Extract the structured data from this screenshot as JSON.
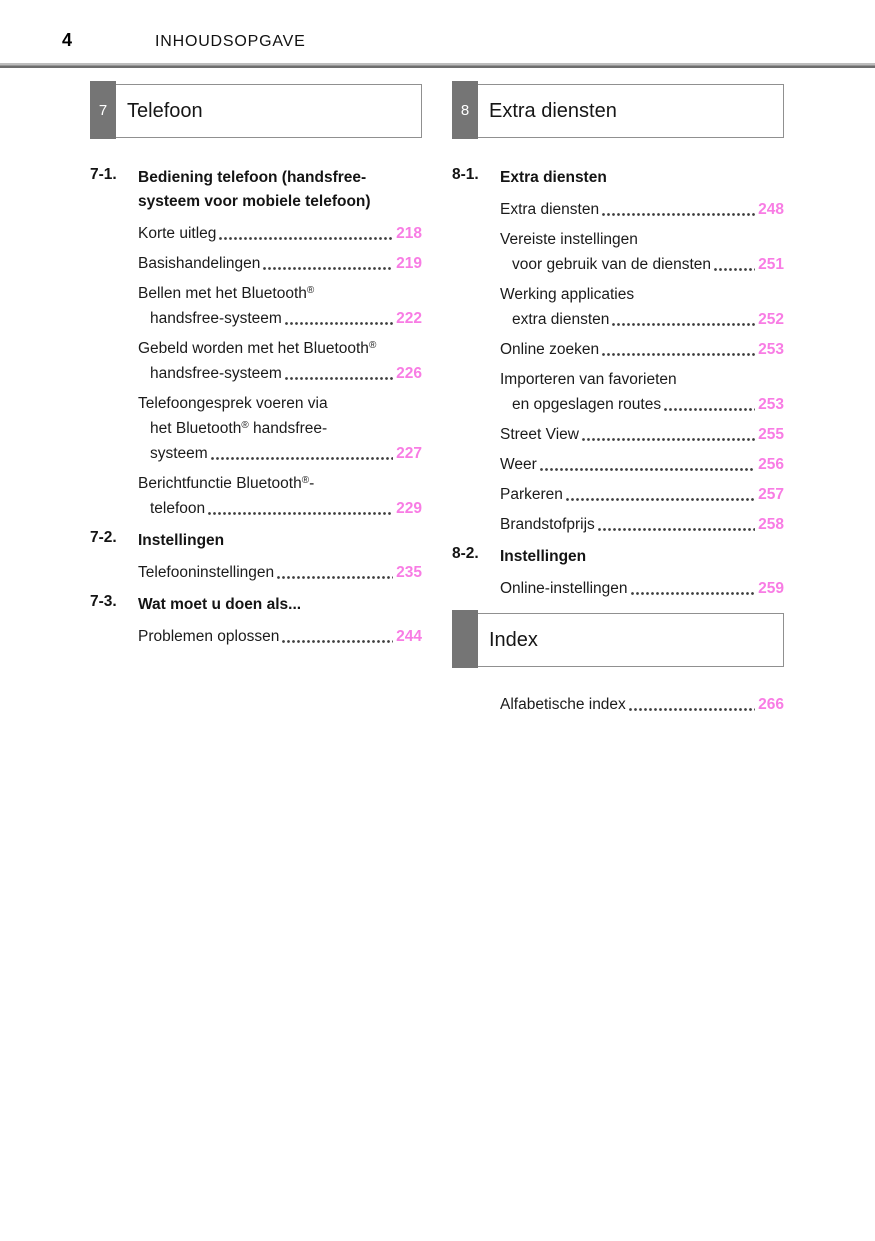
{
  "header": {
    "page_number": "4",
    "title": "INHOUDSOPGAVE"
  },
  "colors": {
    "accent_pink": "#f87ce4",
    "tab_gray": "#757575",
    "rule_gray": "#6d6d6d"
  },
  "columns": [
    {
      "side": "left",
      "blocks": [
        {
          "type": "section",
          "number": "7",
          "title": "Telefoon"
        },
        {
          "type": "group",
          "id": "7-1.",
          "title_lines": [
            "Bediening telefoon (handsfree-",
            "systeem voor mobiele telefoon)"
          ],
          "entries": [
            {
              "lines": [
                "Korte uitleg"
              ],
              "page": "218"
            },
            {
              "lines": [
                "Basishandelingen"
              ],
              "page": "219"
            },
            {
              "lines": [
                "Bellen met het Bluetooth®",
                "handsfree-systeem"
              ],
              "page": "222"
            },
            {
              "lines": [
                "Gebeld worden met het Bluetooth®",
                "handsfree-systeem"
              ],
              "page": "226"
            },
            {
              "lines": [
                "Telefoongesprek voeren via",
                "het Bluetooth® handsfree-",
                "systeem"
              ],
              "page": "227"
            },
            {
              "lines": [
                "Berichtfunctie Bluetooth®-",
                "telefoon"
              ],
              "page": "229"
            }
          ]
        },
        {
          "type": "group",
          "id": "7-2.",
          "title_lines": [
            "Instellingen"
          ],
          "entries": [
            {
              "lines": [
                "Telefooninstellingen"
              ],
              "page": "235"
            }
          ]
        },
        {
          "type": "group",
          "id": "7-3.",
          "title_lines": [
            "Wat moet u doen als..."
          ],
          "entries": [
            {
              "lines": [
                "Problemen oplossen"
              ],
              "page": "244"
            }
          ]
        }
      ]
    },
    {
      "side": "right",
      "blocks": [
        {
          "type": "section",
          "number": "8",
          "title": "Extra diensten"
        },
        {
          "type": "group",
          "id": "8-1.",
          "title_lines": [
            "Extra diensten"
          ],
          "entries": [
            {
              "lines": [
                "Extra diensten"
              ],
              "page": "248"
            },
            {
              "lines": [
                "Vereiste instellingen",
                "voor gebruik van de diensten"
              ],
              "page": "251"
            },
            {
              "lines": [
                "Werking applicaties",
                "extra diensten"
              ],
              "page": "252"
            },
            {
              "lines": [
                "Online zoeken"
              ],
              "page": "253"
            },
            {
              "lines": [
                "Importeren van favorieten",
                "en opgeslagen routes"
              ],
              "page": "253"
            },
            {
              "lines": [
                "Street View"
              ],
              "page": "255"
            },
            {
              "lines": [
                "Weer"
              ],
              "page": "256"
            },
            {
              "lines": [
                "Parkeren"
              ],
              "page": "257"
            },
            {
              "lines": [
                "Brandstofprijs"
              ],
              "page": "258"
            }
          ]
        },
        {
          "type": "group",
          "id": "8-2.",
          "title_lines": [
            "Instellingen"
          ],
          "entries": [
            {
              "lines": [
                "Online-instellingen"
              ],
              "page": "259"
            }
          ]
        },
        {
          "type": "section",
          "number": "",
          "title": "Index"
        },
        {
          "type": "group",
          "id": "",
          "title_lines": [],
          "entries": [
            {
              "lines": [
                "Alfabetische index"
              ],
              "page": "266"
            }
          ]
        }
      ]
    }
  ]
}
